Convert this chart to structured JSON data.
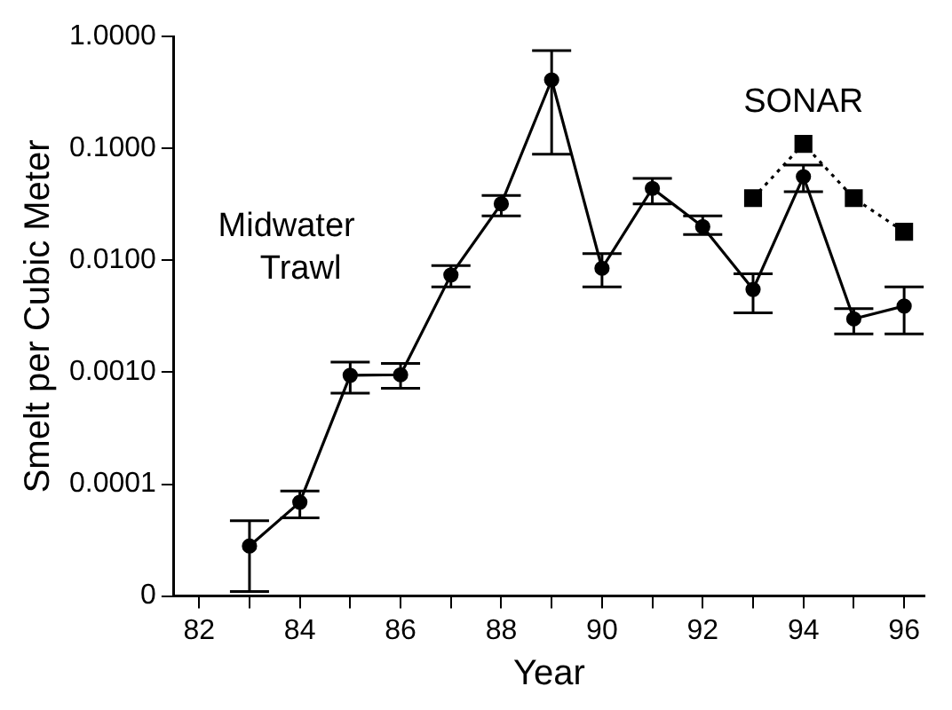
{
  "chart_data": {
    "type": "line",
    "xlabel": "Year",
    "ylabel": "Smelt per Cubic Meter",
    "log": "y",
    "grid": false,
    "legend": false,
    "xlim": [
      81.5,
      96.4
    ],
    "xticks": [
      82,
      {
        "value": 83,
        "label": null
      },
      84,
      {
        "value": 85,
        "label": null
      },
      86,
      {
        "value": 87,
        "label": null
      },
      88,
      {
        "value": 89,
        "label": null
      },
      90,
      {
        "value": 91,
        "label": null
      },
      92,
      {
        "value": 93,
        "label": null
      },
      94,
      {
        "value": 95,
        "label": null
      },
      96
    ],
    "ylim": [
      1e-05,
      1
    ],
    "yticks": [
      {
        "value": 1e-05,
        "label": "0"
      },
      {
        "value": 0.0001,
        "label": "0.0001"
      },
      {
        "value": 0.001,
        "label": "0.0010"
      },
      {
        "value": 0.01,
        "label": "0.0100"
      },
      {
        "value": 0.1,
        "label": "0.1000"
      },
      {
        "value": 1,
        "label": "1.0000"
      }
    ],
    "series": [
      {
        "name": "Midwater Trawl",
        "color": "#000000",
        "marker": "circle",
        "line_style": "solid",
        "x": [
          83,
          84,
          85,
          86,
          87,
          88,
          89,
          90,
          91,
          92,
          93,
          94,
          95,
          96
        ],
        "values": [
          2.8e-05,
          6.9e-05,
          0.00094,
          0.00095,
          0.0074,
          0.032,
          0.41,
          0.0085,
          0.044,
          0.02,
          0.0055,
          0.056,
          0.003,
          0.0039
        ],
        "errors": [
          [
            1.1e-05,
            4.7e-05
          ],
          [
            5e-05,
            8.7e-05
          ],
          [
            0.00065,
            0.00123
          ],
          [
            0.00072,
            0.0012
          ],
          [
            0.0058,
            0.009
          ],
          [
            0.025,
            0.038
          ],
          [
            0.089,
            0.75
          ],
          [
            0.0058,
            0.0115
          ],
          [
            0.032,
            0.054
          ],
          [
            0.017,
            0.025
          ],
          [
            0.0034,
            0.0076
          ],
          [
            0.041,
            0.071
          ],
          [
            0.0022,
            0.0037
          ],
          [
            0.0022,
            0.0058
          ]
        ]
      },
      {
        "name": "SONAR",
        "color": "#000000",
        "marker": "square",
        "line_style": "dotted",
        "x": [
          93,
          94,
          95,
          96
        ],
        "values": [
          0.036,
          0.11,
          0.036,
          0.018
        ]
      }
    ]
  }
}
